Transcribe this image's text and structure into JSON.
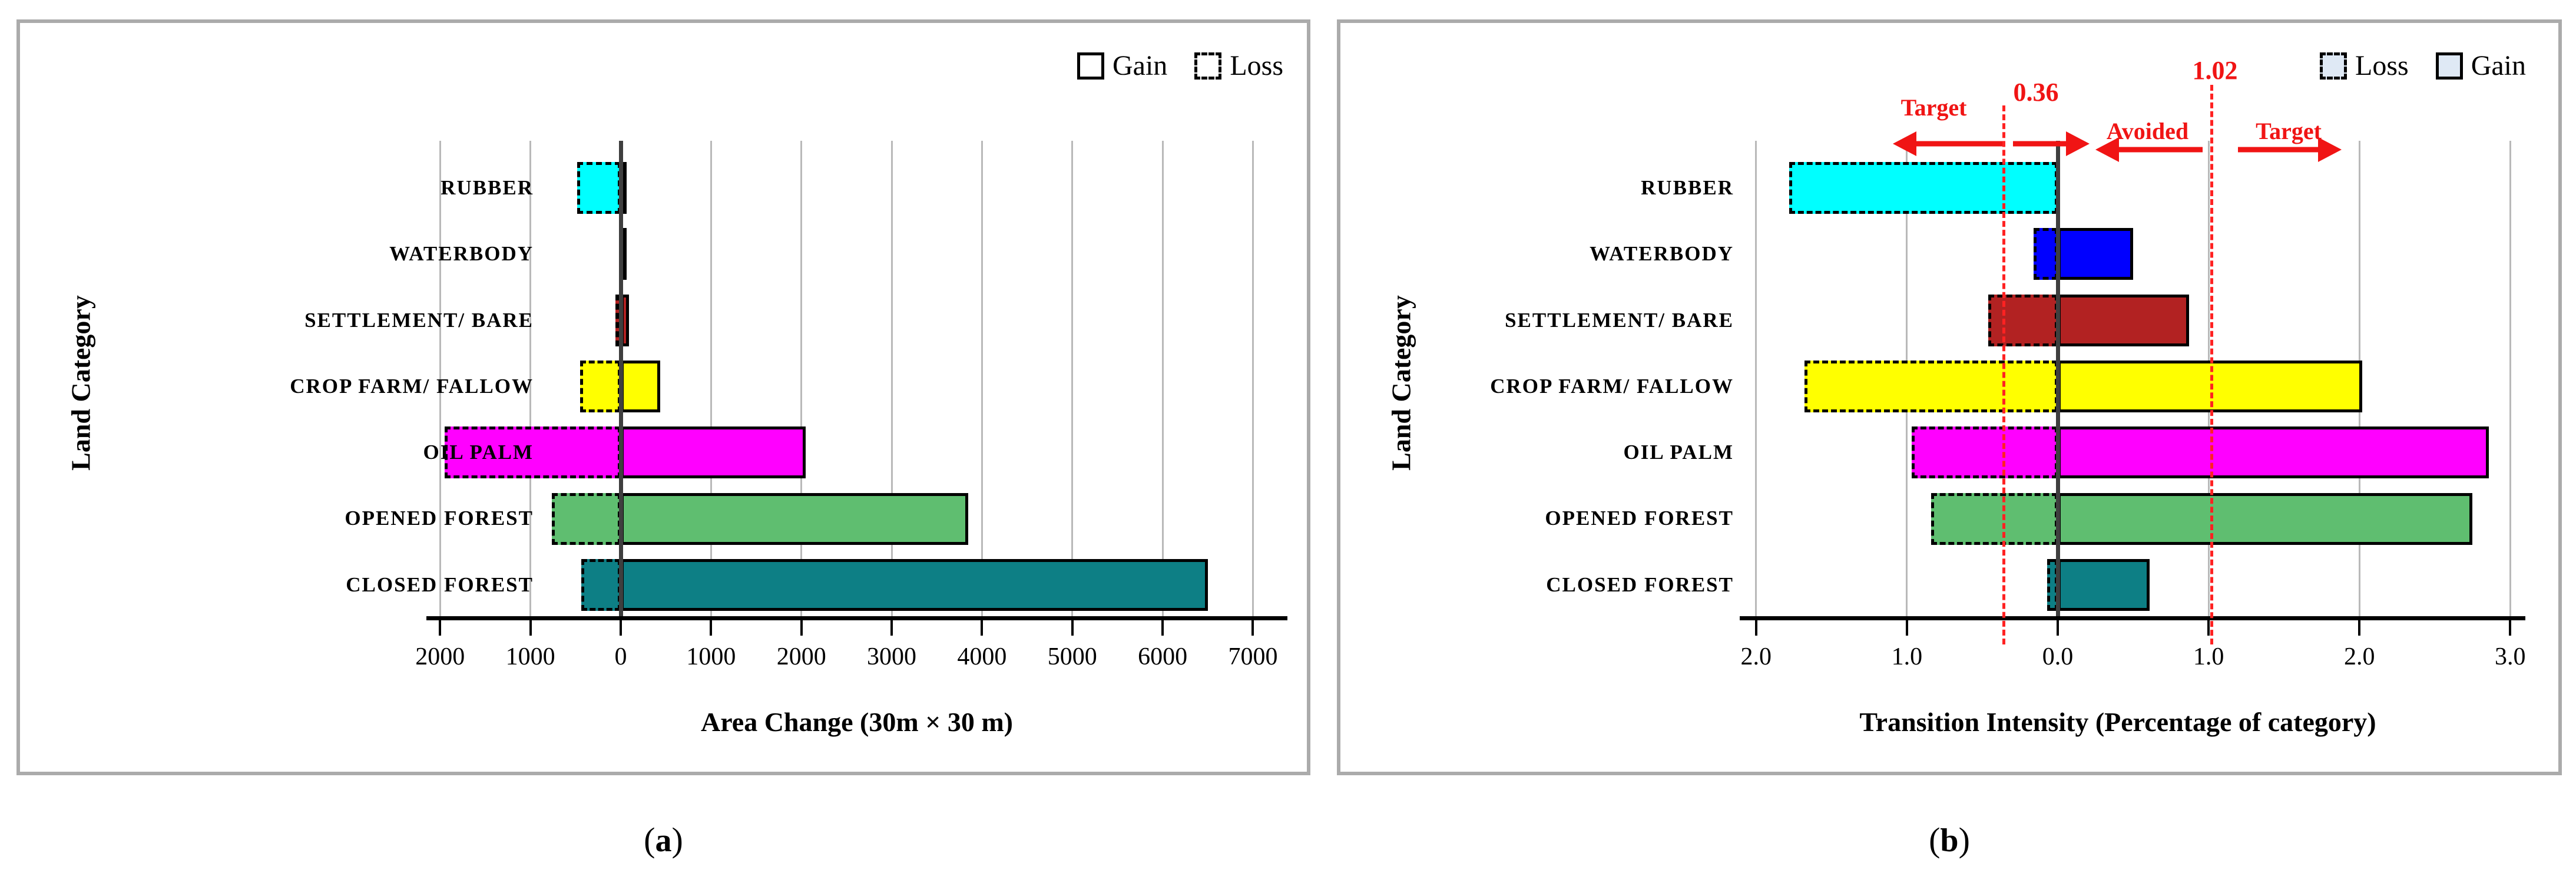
{
  "colors": {
    "panel_border": "#ababab",
    "grid": "#b9b9b9",
    "zero_line": "#3f3f3f",
    "axis": "#000000",
    "annotation_red": "#f01414",
    "legend_fill_a": "#ffffff",
    "legend_fill_b": "#dfe9f5"
  },
  "chart_data": [
    {
      "id": "a",
      "type": "bar",
      "orientation": "horizontal-diverging",
      "caption": {
        "open": "(",
        "letter": "a",
        "close": ")"
      },
      "legend": [
        {
          "label": "Gain",
          "swatch_style": "solid"
        },
        {
          "label": "Loss",
          "swatch_style": "dashed"
        }
      ],
      "legend_fill": "#ffffff",
      "y_axis_title": "Land Category",
      "x_axis_title": "Area Change (30m × 30 m)",
      "categories": [
        "RUBBER",
        "WATERBODY",
        "SETTLEMENT/ BARE",
        "CROP FARM/ FALLOW",
        "OIL PALM",
        "OPENED FOREST",
        "CLOSED FOREST"
      ],
      "bar_colors": [
        "#00ffff",
        "#0000ff",
        "#b22222",
        "#ffff00",
        "#ff00ff",
        "#5fbe70",
        "#0d7f85"
      ],
      "series": [
        {
          "name": "Gain",
          "values": [
            60,
            30,
            90,
            440,
            2050,
            3850,
            6500
          ]
        },
        {
          "name": "Loss",
          "values": [
            480,
            10,
            60,
            450,
            1950,
            760,
            440
          ]
        }
      ],
      "ticks": [
        -2000,
        -1000,
        0,
        1000,
        2000,
        3000,
        4000,
        5000,
        6000,
        7000
      ],
      "tick_labels": [
        "2000",
        "1000",
        "0",
        "1000",
        "2000",
        "3000",
        "4000",
        "5000",
        "6000",
        "7000"
      ],
      "xlim": [
        -2000,
        7000
      ],
      "grid": true,
      "legend_position": "top-right"
    },
    {
      "id": "b",
      "type": "bar",
      "orientation": "horizontal-diverging",
      "caption": {
        "open": "(",
        "letter": "b",
        "close": ")"
      },
      "legend": [
        {
          "label": "Loss",
          "swatch_style": "dashed"
        },
        {
          "label": "Gain",
          "swatch_style": "solid"
        }
      ],
      "legend_fill": "#dfe9f5",
      "y_axis_title": "Land Category",
      "x_axis_title": "Transition Intensity (Percentage of category)",
      "categories": [
        "RUBBER",
        "WATERBODY",
        "SETTLEMENT/ BARE",
        "CROP FARM/ FALLOW",
        "OIL PALM",
        "OPENED FOREST",
        "CLOSED FOREST"
      ],
      "bar_colors": [
        "#00ffff",
        "#0000ff",
        "#b22222",
        "#ffff00",
        "#ff00ff",
        "#5fbe70",
        "#0d7f85"
      ],
      "series": [
        {
          "name": "Gain",
          "values": [
            0,
            0.5,
            0.87,
            2.02,
            2.86,
            2.75,
            0.61
          ]
        },
        {
          "name": "Loss",
          "values": [
            1.78,
            0.16,
            0.46,
            1.68,
            0.97,
            0.84,
            0.07
          ]
        }
      ],
      "ticks": [
        -2,
        -1,
        0,
        1,
        2,
        3
      ],
      "tick_labels": [
        "2.0",
        "1.0",
        "0.0",
        "1.0",
        "2.0",
        "3.0"
      ],
      "xlim": [
        -2,
        3
      ],
      "grid": true,
      "legend_position": "top-right",
      "annotations": {
        "loss_threshold_value": "0.36",
        "gain_threshold_value": "1.02",
        "left_target_label": "Target",
        "avoided_label": "Avoided",
        "right_target_label": "Target"
      }
    }
  ]
}
